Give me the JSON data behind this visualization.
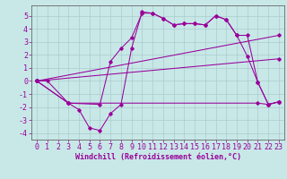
{
  "background_color": "#c8e8e8",
  "grid_color": "#aacccc",
  "line_color": "#990099",
  "marker_color": "#990099",
  "xlabel": "Windchill (Refroidissement éolien,°C)",
  "xlabel_fontsize": 6.0,
  "tick_fontsize": 6.0,
  "xlim": [
    -0.5,
    23.5
  ],
  "ylim": [
    -4.5,
    5.8
  ],
  "yticks": [
    -4,
    -3,
    -2,
    -1,
    0,
    1,
    2,
    3,
    4,
    5
  ],
  "xticks": [
    0,
    1,
    2,
    3,
    4,
    5,
    6,
    7,
    8,
    9,
    10,
    11,
    12,
    13,
    14,
    15,
    16,
    17,
    18,
    19,
    20,
    21,
    22,
    23
  ],
  "series1_x": [
    0,
    1,
    3,
    21,
    22,
    23
  ],
  "series1_y": [
    0,
    0,
    -1.7,
    -1.7,
    -1.8,
    -1.6
  ],
  "series2_x": [
    0,
    3,
    4,
    5,
    6,
    7,
    8,
    9,
    10,
    11,
    12,
    13,
    14,
    15,
    16,
    17,
    18,
    19,
    20,
    21,
    22,
    23
  ],
  "series2_y": [
    0,
    -1.7,
    -2.2,
    -3.6,
    -3.8,
    -2.5,
    -1.8,
    2.5,
    5.3,
    5.2,
    4.8,
    4.3,
    4.4,
    4.4,
    4.3,
    5.0,
    4.7,
    3.5,
    1.9,
    -0.1,
    -1.8,
    -1.6
  ],
  "series3_x": [
    0,
    3,
    6,
    7,
    8,
    9,
    10,
    11,
    12,
    13,
    14,
    15,
    16,
    17,
    18,
    19,
    20,
    21,
    22,
    23
  ],
  "series3_y": [
    0,
    -1.7,
    -1.8,
    1.5,
    2.5,
    3.3,
    5.2,
    5.2,
    4.8,
    4.3,
    4.4,
    4.4,
    4.3,
    5.0,
    4.7,
    3.5,
    3.5,
    -0.1,
    -1.8,
    -1.6
  ],
  "series4_x": [
    0,
    23
  ],
  "series4_y": [
    0,
    3.5
  ],
  "series5_x": [
    0,
    23
  ],
  "series5_y": [
    0,
    1.7
  ]
}
